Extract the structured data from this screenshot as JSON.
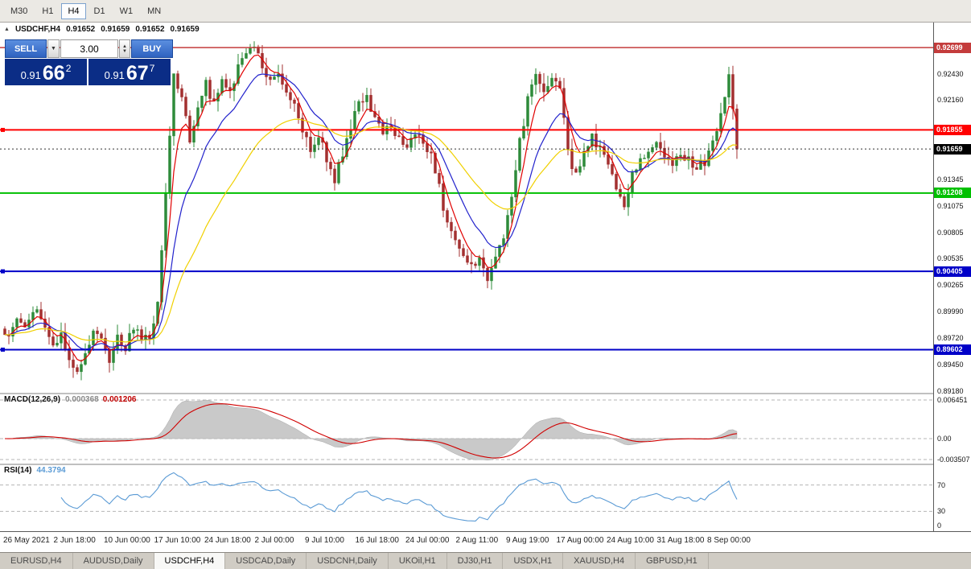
{
  "toolbar": {
    "timeframes": [
      {
        "label": "M30",
        "active": false
      },
      {
        "label": "H1",
        "active": false
      },
      {
        "label": "H4",
        "active": true
      },
      {
        "label": "D1",
        "active": false
      },
      {
        "label": "W1",
        "active": false
      },
      {
        "label": "MN",
        "active": false
      }
    ]
  },
  "chart": {
    "collapse_icon": "▲",
    "symbol_header": "USDCHF,H4",
    "ohlc": [
      "0.91652",
      "0.91659",
      "0.91652",
      "0.91659"
    ],
    "trade_panel": {
      "sell_label": "SELL",
      "buy_label": "BUY",
      "volume": "3.00",
      "dropdown_icon": "▼",
      "spinner_up_icon": "▲",
      "spinner_down_icon": "▼",
      "sell_price_prefix": "0.91",
      "sell_price_big": "66",
      "sell_price_sup": "2",
      "buy_price_prefix": "0.91",
      "buy_price_big": "67",
      "buy_price_sup": "7"
    }
  },
  "macd": {
    "label": "MACD(12,26,9)",
    "value": "0.000368",
    "signal_value": "0.001206",
    "axis_labels": [
      "0.006451",
      "0.00",
      "-0.003507"
    ]
  },
  "rsi": {
    "label": "RSI(14)",
    "value": "44.3794",
    "axis_labels": [
      "70",
      "30",
      "0"
    ],
    "axis_values": [
      70,
      30,
      0
    ]
  },
  "tabs": [
    {
      "label": "EURUSD,H4",
      "active": false
    },
    {
      "label": "AUDUSD,Daily",
      "active": false
    },
    {
      "label": "USDCHF,H4",
      "active": true
    },
    {
      "label": "USDCAD,Daily",
      "active": false
    },
    {
      "label": "USDCNH,Daily",
      "active": false
    },
    {
      "label": "UKOil,H1",
      "active": false
    },
    {
      "label": "DJ30,H1",
      "active": false
    },
    {
      "label": "USDX,H1",
      "active": false
    },
    {
      "label": "XAUUSD,H4",
      "active": false
    },
    {
      "label": "GBPUSD,H1",
      "active": false
    }
  ],
  "chart_data": {
    "type": "candlestick",
    "symbol": "USDCHF",
    "timeframe": "H4",
    "current_price": 0.91659,
    "current_price_label": "0.91659",
    "price_range": [
      0.8916,
      0.9289
    ],
    "candle_count": 183,
    "y_ticks": [
      "0.92430",
      "0.92160",
      "0.91345",
      "0.91075",
      "0.90805",
      "0.90535",
      "0.90265",
      "0.89990",
      "0.89720",
      "0.89450",
      "0.89180"
    ],
    "x_labels": [
      "26 May 2021",
      "2 Jun 18:00",
      "10 Jun 00:00",
      "17 Jun 10:00",
      "24 Jun 18:00",
      "2 Jul 00:00",
      "9 Jul 10:00",
      "16 Jul 18:00",
      "24 Jul 00:00",
      "2 Aug 11:00",
      "9 Aug 19:00",
      "17 Aug 00:00",
      "24 Aug 10:00",
      "31 Aug 18:00",
      "8 Sep 00:00"
    ],
    "levels": [
      {
        "label": "0.92699",
        "value": 0.92699,
        "color": "#c43c3c",
        "width": 1.5,
        "handle": false
      },
      {
        "label": "0.91855",
        "value": 0.91855,
        "color": "#ff0000",
        "width": 2,
        "handle": true
      },
      {
        "label": "0.91208",
        "value": 0.91208,
        "color": "#00c000",
        "width": 2,
        "handle": false
      },
      {
        "label": "0.90405",
        "value": 0.90405,
        "color": "#0000c8",
        "width": 2,
        "handle": true
      },
      {
        "label": "0.89602",
        "value": 0.89602,
        "color": "#0000c8",
        "width": 2,
        "handle": true
      }
    ],
    "moving_averages": [
      {
        "period": 5,
        "color": "#e00000"
      },
      {
        "period": 13,
        "color": "#2222cc"
      },
      {
        "period": 34,
        "color": "#f0d000"
      }
    ],
    "macd_axis": {
      "top": 0.006451,
      "zero": 0.0,
      "bottom": -0.003507
    },
    "colors": {
      "bull": "#2e8b3a",
      "bear": "#a33030",
      "macd_fill": "#c9c9c9",
      "macd_signal": "#d00000",
      "rsi_line": "#5b9bd5",
      "current_line": "#333333"
    },
    "price_path": [
      [
        0,
        0.8972
      ],
      [
        3,
        0.899
      ],
      [
        5,
        0.8982
      ],
      [
        8,
        0.9
      ],
      [
        10,
        0.8985
      ],
      [
        12,
        0.8962
      ],
      [
        14,
        0.8978
      ],
      [
        16,
        0.8955
      ],
      [
        18,
        0.8936
      ],
      [
        20,
        0.8958
      ],
      [
        22,
        0.8976
      ],
      [
        24,
        0.8968
      ],
      [
        26,
        0.8952
      ],
      [
        28,
        0.897
      ],
      [
        30,
        0.8964
      ],
      [
        32,
        0.8985
      ],
      [
        34,
        0.8972
      ],
      [
        36,
        0.8968
      ],
      [
        38,
        0.901
      ],
      [
        40,
        0.912
      ],
      [
        42,
        0.9243
      ],
      [
        44,
        0.9222
      ],
      [
        46,
        0.9178
      ],
      [
        48,
        0.9205
      ],
      [
        50,
        0.9232
      ],
      [
        52,
        0.9212
      ],
      [
        54,
        0.9238
      ],
      [
        56,
        0.9222
      ],
      [
        58,
        0.9248
      ],
      [
        60,
        0.926
      ],
      [
        62,
        0.927
      ],
      [
        64,
        0.925
      ],
      [
        66,
        0.9238
      ],
      [
        68,
        0.9244
      ],
      [
        70,
        0.9228
      ],
      [
        72,
        0.921
      ],
      [
        74,
        0.9186
      ],
      [
        76,
        0.9166
      ],
      [
        78,
        0.9182
      ],
      [
        80,
        0.9158
      ],
      [
        82,
        0.9134
      ],
      [
        84,
        0.916
      ],
      [
        86,
        0.9188
      ],
      [
        88,
        0.9214
      ],
      [
        90,
        0.9222
      ],
      [
        92,
        0.9196
      ],
      [
        94,
        0.918
      ],
      [
        96,
        0.9192
      ],
      [
        98,
        0.9176
      ],
      [
        100,
        0.9168
      ],
      [
        102,
        0.9182
      ],
      [
        104,
        0.9172
      ],
      [
        106,
        0.9158
      ],
      [
        108,
        0.9128
      ],
      [
        110,
        0.9086
      ],
      [
        112,
        0.9068
      ],
      [
        114,
        0.9052
      ],
      [
        116,
        0.9044
      ],
      [
        118,
        0.9052
      ],
      [
        120,
        0.9034
      ],
      [
        122,
        0.9056
      ],
      [
        124,
        0.9078
      ],
      [
        126,
        0.9122
      ],
      [
        128,
        0.9172
      ],
      [
        130,
        0.9216
      ],
      [
        132,
        0.9242
      ],
      [
        134,
        0.9226
      ],
      [
        136,
        0.9236
      ],
      [
        138,
        0.9224
      ],
      [
        140,
        0.9162
      ],
      [
        142,
        0.914
      ],
      [
        144,
        0.916
      ],
      [
        146,
        0.918
      ],
      [
        148,
        0.9164
      ],
      [
        150,
        0.9152
      ],
      [
        152,
        0.9126
      ],
      [
        154,
        0.9104
      ],
      [
        156,
        0.9138
      ],
      [
        158,
        0.9158
      ],
      [
        160,
        0.9166
      ],
      [
        162,
        0.9172
      ],
      [
        164,
        0.916
      ],
      [
        166,
        0.9154
      ],
      [
        168,
        0.9164
      ],
      [
        170,
        0.9154
      ],
      [
        172,
        0.9146
      ],
      [
        174,
        0.9152
      ],
      [
        176,
        0.9172
      ],
      [
        178,
        0.9206
      ],
      [
        180,
        0.9238
      ],
      [
        181,
        0.921
      ],
      [
        182,
        0.91659
      ]
    ]
  }
}
